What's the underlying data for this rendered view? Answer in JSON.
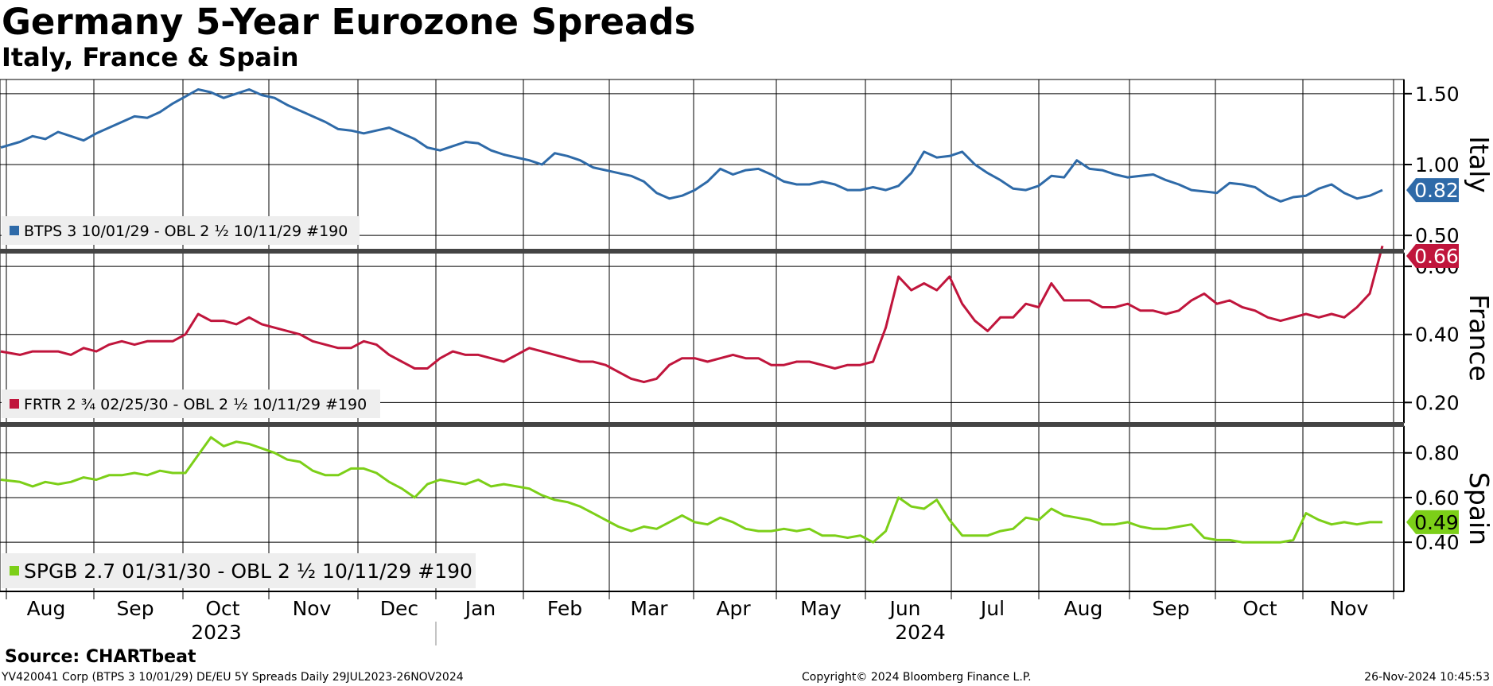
{
  "header": {
    "title": "Germany 5-Year Eurozone Spreads",
    "subtitle": "Italy, France & Spain"
  },
  "footer": {
    "source": "Source: CHARTbeat",
    "left": "YV420041 Corp (BTPS 3 10/01/29) DE/EU 5Y Spreads  Daily 29JUL2023-26NOV2024",
    "copyright": "Copyright© 2024 Bloomberg Finance L.P.",
    "timestamp": "26-Nov-2024 10:45:53"
  },
  "colors": {
    "italy": "#2e6aa8",
    "france": "#c0153c",
    "spain": "#7ccf18",
    "grid": "#000000",
    "legend_bg": "#eeeeee"
  },
  "chart_data": [
    {
      "type": "line",
      "panel": "Italy",
      "axis_label": "Italy",
      "series": [
        {
          "name": "BTPS 3 10/01/29 - OBL 2 ½ 10/11/29 #190"
        }
      ],
      "last_value": 0.82,
      "last_value_label": "0.82",
      "ylim": [
        0.4,
        1.6
      ],
      "yticks": [
        0.5,
        1.0,
        1.5
      ],
      "ytick_labels": [
        "0.50",
        "1.00",
        "1.50"
      ],
      "points": [
        [
          0,
          1.12
        ],
        [
          3,
          1.16
        ],
        [
          5,
          1.2
        ],
        [
          7,
          1.18
        ],
        [
          9,
          1.23
        ],
        [
          11,
          1.2
        ],
        [
          13,
          1.17
        ],
        [
          15,
          1.22
        ],
        [
          17,
          1.26
        ],
        [
          19,
          1.3
        ],
        [
          21,
          1.34
        ],
        [
          23,
          1.33
        ],
        [
          25,
          1.37
        ],
        [
          27,
          1.43
        ],
        [
          29,
          1.48
        ],
        [
          31,
          1.53
        ],
        [
          33,
          1.51
        ],
        [
          35,
          1.47
        ],
        [
          37,
          1.5
        ],
        [
          39,
          1.53
        ],
        [
          41,
          1.49
        ],
        [
          43,
          1.47
        ],
        [
          45,
          1.42
        ],
        [
          47,
          1.38
        ],
        [
          49,
          1.34
        ],
        [
          51,
          1.3
        ],
        [
          53,
          1.25
        ],
        [
          55,
          1.24
        ],
        [
          57,
          1.22
        ],
        [
          59,
          1.24
        ],
        [
          61,
          1.26
        ],
        [
          63,
          1.22
        ],
        [
          65,
          1.18
        ],
        [
          67,
          1.12
        ],
        [
          69,
          1.1
        ],
        [
          71,
          1.13
        ],
        [
          73,
          1.16
        ],
        [
          75,
          1.15
        ],
        [
          77,
          1.1
        ],
        [
          79,
          1.07
        ],
        [
          81,
          1.05
        ],
        [
          83,
          1.03
        ],
        [
          85,
          1.0
        ],
        [
          87,
          1.08
        ],
        [
          89,
          1.06
        ],
        [
          91,
          1.03
        ],
        [
          93,
          0.98
        ],
        [
          95,
          0.96
        ],
        [
          97,
          0.94
        ],
        [
          99,
          0.92
        ],
        [
          101,
          0.88
        ],
        [
          103,
          0.8
        ],
        [
          105,
          0.76
        ],
        [
          107,
          0.78
        ],
        [
          109,
          0.82
        ],
        [
          111,
          0.88
        ],
        [
          113,
          0.97
        ],
        [
          115,
          0.93
        ],
        [
          117,
          0.96
        ],
        [
          119,
          0.97
        ],
        [
          121,
          0.93
        ],
        [
          123,
          0.88
        ],
        [
          125,
          0.86
        ],
        [
          127,
          0.86
        ],
        [
          129,
          0.88
        ],
        [
          131,
          0.86
        ],
        [
          133,
          0.82
        ],
        [
          135,
          0.82
        ],
        [
          137,
          0.84
        ],
        [
          139,
          0.82
        ],
        [
          141,
          0.85
        ],
        [
          143,
          0.94
        ],
        [
          145,
          1.09
        ],
        [
          147,
          1.05
        ],
        [
          149,
          1.06
        ],
        [
          151,
          1.09
        ],
        [
          153,
          1.0
        ],
        [
          155,
          0.94
        ],
        [
          157,
          0.89
        ],
        [
          159,
          0.83
        ],
        [
          161,
          0.82
        ],
        [
          163,
          0.85
        ],
        [
          165,
          0.92
        ],
        [
          167,
          0.91
        ],
        [
          169,
          1.03
        ],
        [
          171,
          0.97
        ],
        [
          173,
          0.96
        ],
        [
          175,
          0.93
        ],
        [
          177,
          0.91
        ],
        [
          179,
          0.92
        ],
        [
          181,
          0.93
        ],
        [
          183,
          0.89
        ],
        [
          185,
          0.86
        ],
        [
          187,
          0.82
        ],
        [
          189,
          0.81
        ],
        [
          191,
          0.8
        ],
        [
          193,
          0.87
        ],
        [
          195,
          0.86
        ],
        [
          197,
          0.84
        ],
        [
          199,
          0.78
        ],
        [
          201,
          0.74
        ],
        [
          203,
          0.77
        ],
        [
          205,
          0.78
        ],
        [
          207,
          0.83
        ],
        [
          209,
          0.86
        ],
        [
          211,
          0.8
        ],
        [
          213,
          0.76
        ],
        [
          215,
          0.78
        ],
        [
          217,
          0.82
        ]
      ]
    },
    {
      "type": "line",
      "panel": "France",
      "axis_label": "France",
      "series": [
        {
          "name": "FRTR 2 ¾ 02/25/30 - OBL 2 ½ 10/11/29 #190"
        }
      ],
      "last_value": 0.66,
      "last_value_label": "0.66",
      "ylim": [
        0.14,
        0.64
      ],
      "yticks": [
        0.2,
        0.4,
        0.6
      ],
      "ytick_labels": [
        "0.20",
        "0.40",
        "0.60"
      ],
      "points": [
        [
          0,
          0.35
        ],
        [
          3,
          0.34
        ],
        [
          5,
          0.35
        ],
        [
          7,
          0.35
        ],
        [
          9,
          0.35
        ],
        [
          11,
          0.34
        ],
        [
          13,
          0.36
        ],
        [
          15,
          0.35
        ],
        [
          17,
          0.37
        ],
        [
          19,
          0.38
        ],
        [
          21,
          0.37
        ],
        [
          23,
          0.38
        ],
        [
          25,
          0.38
        ],
        [
          27,
          0.38
        ],
        [
          29,
          0.4
        ],
        [
          31,
          0.46
        ],
        [
          33,
          0.44
        ],
        [
          35,
          0.44
        ],
        [
          37,
          0.43
        ],
        [
          39,
          0.45
        ],
        [
          41,
          0.43
        ],
        [
          43,
          0.42
        ],
        [
          45,
          0.41
        ],
        [
          47,
          0.4
        ],
        [
          49,
          0.38
        ],
        [
          51,
          0.37
        ],
        [
          53,
          0.36
        ],
        [
          55,
          0.36
        ],
        [
          57,
          0.38
        ],
        [
          59,
          0.37
        ],
        [
          61,
          0.34
        ],
        [
          63,
          0.32
        ],
        [
          65,
          0.3
        ],
        [
          67,
          0.3
        ],
        [
          69,
          0.33
        ],
        [
          71,
          0.35
        ],
        [
          73,
          0.34
        ],
        [
          75,
          0.34
        ],
        [
          77,
          0.33
        ],
        [
          79,
          0.32
        ],
        [
          81,
          0.34
        ],
        [
          83,
          0.36
        ],
        [
          85,
          0.35
        ],
        [
          87,
          0.34
        ],
        [
          89,
          0.33
        ],
        [
          91,
          0.32
        ],
        [
          93,
          0.32
        ],
        [
          95,
          0.31
        ],
        [
          97,
          0.29
        ],
        [
          99,
          0.27
        ],
        [
          101,
          0.26
        ],
        [
          103,
          0.27
        ],
        [
          105,
          0.31
        ],
        [
          107,
          0.33
        ],
        [
          109,
          0.33
        ],
        [
          111,
          0.32
        ],
        [
          113,
          0.33
        ],
        [
          115,
          0.34
        ],
        [
          117,
          0.33
        ],
        [
          119,
          0.33
        ],
        [
          121,
          0.31
        ],
        [
          123,
          0.31
        ],
        [
          125,
          0.32
        ],
        [
          127,
          0.32
        ],
        [
          129,
          0.31
        ],
        [
          131,
          0.3
        ],
        [
          133,
          0.31
        ],
        [
          135,
          0.31
        ],
        [
          137,
          0.32
        ],
        [
          139,
          0.42
        ],
        [
          141,
          0.57
        ],
        [
          143,
          0.53
        ],
        [
          145,
          0.55
        ],
        [
          147,
          0.53
        ],
        [
          149,
          0.57
        ],
        [
          151,
          0.49
        ],
        [
          153,
          0.44
        ],
        [
          155,
          0.41
        ],
        [
          157,
          0.45
        ],
        [
          159,
          0.45
        ],
        [
          161,
          0.49
        ],
        [
          163,
          0.48
        ],
        [
          165,
          0.55
        ],
        [
          167,
          0.5
        ],
        [
          169,
          0.5
        ],
        [
          171,
          0.5
        ],
        [
          173,
          0.48
        ],
        [
          175,
          0.48
        ],
        [
          177,
          0.49
        ],
        [
          179,
          0.47
        ],
        [
          181,
          0.47
        ],
        [
          183,
          0.46
        ],
        [
          185,
          0.47
        ],
        [
          187,
          0.5
        ],
        [
          189,
          0.52
        ],
        [
          191,
          0.49
        ],
        [
          193,
          0.5
        ],
        [
          195,
          0.48
        ],
        [
          197,
          0.47
        ],
        [
          199,
          0.45
        ],
        [
          201,
          0.44
        ],
        [
          203,
          0.45
        ],
        [
          205,
          0.46
        ],
        [
          207,
          0.45
        ],
        [
          209,
          0.46
        ],
        [
          211,
          0.45
        ],
        [
          213,
          0.48
        ],
        [
          215,
          0.52
        ],
        [
          217,
          0.66
        ]
      ]
    },
    {
      "type": "line",
      "panel": "Spain",
      "axis_label": "Spain",
      "series": [
        {
          "name": "SPGB 2.7 01/31/30 - OBL 2 ½ 10/11/29 #190"
        }
      ],
      "last_value": 0.49,
      "last_value_label": "0.49",
      "ylim": [
        0.18,
        0.92
      ],
      "yticks": [
        0.4,
        0.6,
        0.8
      ],
      "ytick_labels": [
        "0.40",
        "0.60",
        "0.80"
      ],
      "points": [
        [
          0,
          0.68
        ],
        [
          3,
          0.67
        ],
        [
          5,
          0.65
        ],
        [
          7,
          0.67
        ],
        [
          9,
          0.66
        ],
        [
          11,
          0.67
        ],
        [
          13,
          0.69
        ],
        [
          15,
          0.68
        ],
        [
          17,
          0.7
        ],
        [
          19,
          0.7
        ],
        [
          21,
          0.71
        ],
        [
          23,
          0.7
        ],
        [
          25,
          0.72
        ],
        [
          27,
          0.71
        ],
        [
          29,
          0.71
        ],
        [
          31,
          0.79
        ],
        [
          33,
          0.87
        ],
        [
          35,
          0.83
        ],
        [
          37,
          0.85
        ],
        [
          39,
          0.84
        ],
        [
          41,
          0.82
        ],
        [
          43,
          0.8
        ],
        [
          45,
          0.77
        ],
        [
          47,
          0.76
        ],
        [
          49,
          0.72
        ],
        [
          51,
          0.7
        ],
        [
          53,
          0.7
        ],
        [
          55,
          0.73
        ],
        [
          57,
          0.73
        ],
        [
          59,
          0.71
        ],
        [
          61,
          0.67
        ],
        [
          63,
          0.64
        ],
        [
          65,
          0.6
        ],
        [
          67,
          0.66
        ],
        [
          69,
          0.68
        ],
        [
          71,
          0.67
        ],
        [
          73,
          0.66
        ],
        [
          75,
          0.68
        ],
        [
          77,
          0.65
        ],
        [
          79,
          0.66
        ],
        [
          81,
          0.65
        ],
        [
          83,
          0.64
        ],
        [
          85,
          0.61
        ],
        [
          87,
          0.59
        ],
        [
          89,
          0.58
        ],
        [
          91,
          0.56
        ],
        [
          93,
          0.53
        ],
        [
          95,
          0.5
        ],
        [
          97,
          0.47
        ],
        [
          99,
          0.45
        ],
        [
          101,
          0.47
        ],
        [
          103,
          0.46
        ],
        [
          105,
          0.49
        ],
        [
          107,
          0.52
        ],
        [
          109,
          0.49
        ],
        [
          111,
          0.48
        ],
        [
          113,
          0.51
        ],
        [
          115,
          0.49
        ],
        [
          117,
          0.46
        ],
        [
          119,
          0.45
        ],
        [
          121,
          0.45
        ],
        [
          123,
          0.46
        ],
        [
          125,
          0.45
        ],
        [
          127,
          0.46
        ],
        [
          129,
          0.43
        ],
        [
          131,
          0.43
        ],
        [
          133,
          0.42
        ],
        [
          135,
          0.43
        ],
        [
          137,
          0.4
        ],
        [
          139,
          0.45
        ],
        [
          141,
          0.6
        ],
        [
          143,
          0.56
        ],
        [
          145,
          0.55
        ],
        [
          147,
          0.59
        ],
        [
          149,
          0.5
        ],
        [
          151,
          0.43
        ],
        [
          153,
          0.43
        ],
        [
          155,
          0.43
        ],
        [
          157,
          0.45
        ],
        [
          159,
          0.46
        ],
        [
          161,
          0.51
        ],
        [
          163,
          0.5
        ],
        [
          165,
          0.55
        ],
        [
          167,
          0.52
        ],
        [
          169,
          0.51
        ],
        [
          171,
          0.5
        ],
        [
          173,
          0.48
        ],
        [
          175,
          0.48
        ],
        [
          177,
          0.49
        ],
        [
          179,
          0.47
        ],
        [
          181,
          0.46
        ],
        [
          183,
          0.46
        ],
        [
          185,
          0.47
        ],
        [
          187,
          0.48
        ],
        [
          189,
          0.42
        ],
        [
          191,
          0.41
        ],
        [
          193,
          0.41
        ],
        [
          195,
          0.4
        ],
        [
          197,
          0.4
        ],
        [
          199,
          0.4
        ],
        [
          201,
          0.4
        ],
        [
          203,
          0.41
        ],
        [
          205,
          0.53
        ],
        [
          207,
          0.5
        ],
        [
          209,
          0.48
        ],
        [
          211,
          0.49
        ],
        [
          213,
          0.48
        ],
        [
          215,
          0.49
        ],
        [
          217,
          0.49
        ]
      ]
    }
  ],
  "x_axis": {
    "months": [
      "Aug",
      "Sep",
      "Oct",
      "Nov",
      "Dec",
      "Jan",
      "Feb",
      "Mar",
      "Apr",
      "May",
      "Jun",
      "Jul",
      "Aug",
      "Sep",
      "Oct",
      "Nov"
    ],
    "years": [
      "2023",
      "2024"
    ]
  }
}
